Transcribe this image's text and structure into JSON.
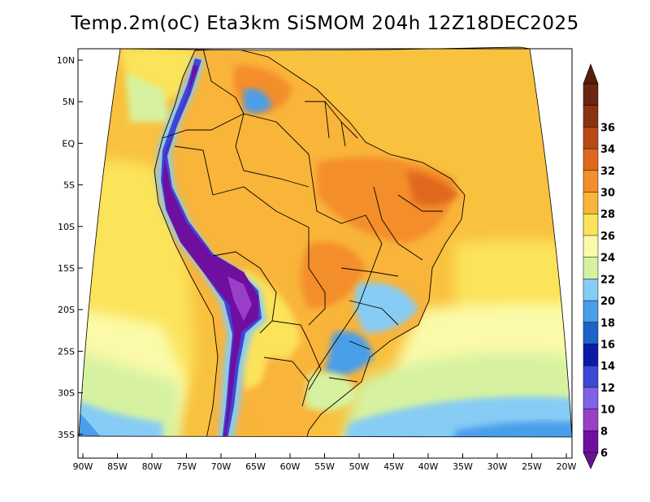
{
  "title": "Temp.2m(oC) Eta3km SiSMOM 204h 12Z18DEC2025",
  "lat_labels": [
    "10N",
    "5N",
    "EQ",
    "5S",
    "10S",
    "15S",
    "20S",
    "25S",
    "30S",
    "35S"
  ],
  "lon_labels": [
    "90W",
    "85W",
    "80W",
    "75W",
    "70W",
    "65W",
    "60W",
    "55W",
    "50W",
    "45W",
    "40W",
    "35W",
    "30W",
    "25W",
    "20W"
  ],
  "colorbar": {
    "labels": [
      "6",
      "8",
      "10",
      "12",
      "14",
      "16",
      "18",
      "20",
      "22",
      "24",
      "26",
      "28",
      "30",
      "32",
      "34",
      "36"
    ],
    "colors": [
      "#6f0fa0",
      "#9a3fc7",
      "#7f62e6",
      "#3c48d6",
      "#0a1aa8",
      "#1c62c7",
      "#4a9eea",
      "#86ccf5",
      "#d6f2a0",
      "#fbfaa8",
      "#fbe35a",
      "#f9b43a",
      "#f48e2c",
      "#e0681e",
      "#b84a18",
      "#8a3212",
      "#6a260e"
    ],
    "min_arrow": "#6a118f",
    "max_arrow": "#5a1e0c"
  },
  "legend_colors": {
    "ocean_warm": "#f9c23e",
    "ocean_mild": "#fbfaa8",
    "ocean_cool": "#d6f2a0",
    "ocean_cold": "#86ccf5",
    "land_hot": "#f48e2c",
    "land_warm": "#f9b43a",
    "andes": "#6f0fa0"
  }
}
